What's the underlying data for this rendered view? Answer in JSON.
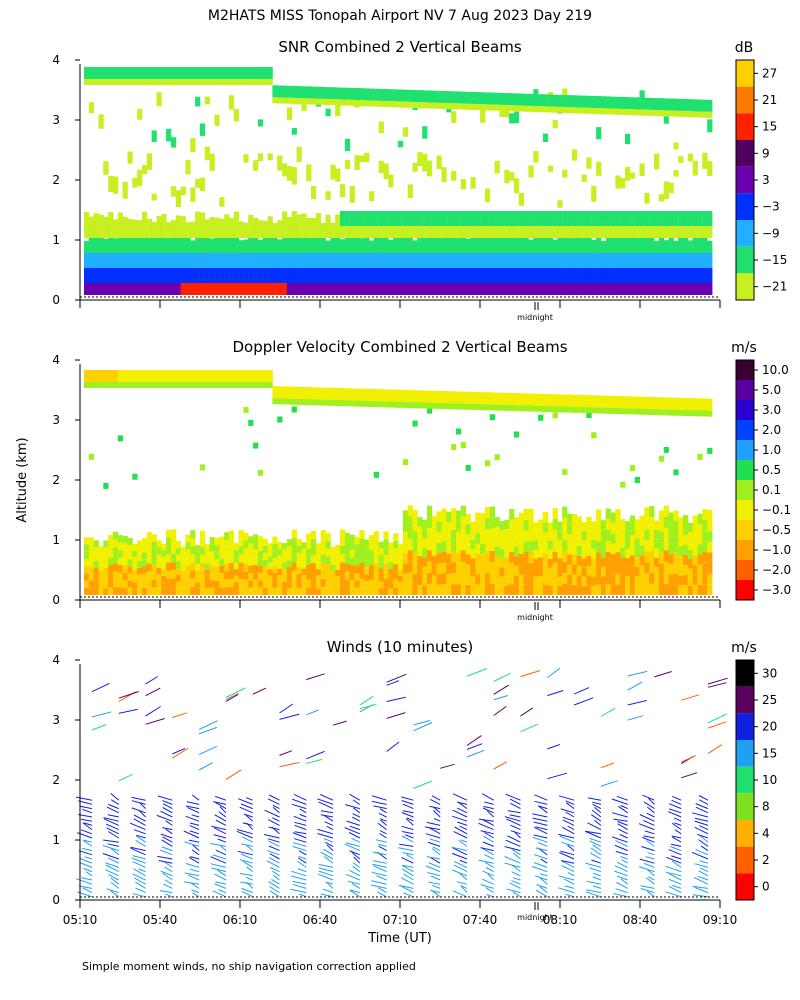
{
  "header": {
    "title": "M2HATS MISS Tonopah Airport NV   7 Aug 2023 Day 219"
  },
  "footer": {
    "note": "Simple moment winds, no ship navigation correction applied"
  },
  "axes": {
    "shared_ylabel": "Altitude (km)",
    "xlabel": "Time (UT)",
    "x_ticks": [
      "05:10",
      "05:40",
      "06:10",
      "06:40",
      "07:10",
      "07:40",
      "08:10",
      "08:40",
      "09:10"
    ],
    "y_ticks": [
      "0",
      "1",
      "2",
      "3",
      "4"
    ],
    "midnight_label": "midnight"
  },
  "chart_data": [
    {
      "type": "heatmap",
      "title": "SNR Combined 2 Vertical Beams",
      "colorbar_title": "dB",
      "colorbar_ticks": [
        "27",
        "21",
        "15",
        "9",
        "3",
        "−3",
        "−9",
        "−15",
        "−21"
      ],
      "colorbar_colors": [
        "#ffd000",
        "#ff7a00",
        "#ff2000",
        "#500060",
        "#6a00b0",
        "#0030ff",
        "#20b0ff",
        "#20e070",
        "#c8f020"
      ],
      "xlim": [
        "05:10",
        "09:10"
      ],
      "ylim": [
        0,
        4
      ],
      "xlabel": "",
      "ylabel": "Altitude (km)"
    },
    {
      "type": "heatmap",
      "title": "Doppler Velocity Combined 2 Vertical Beams",
      "colorbar_title": "m/s",
      "colorbar_ticks": [
        "10.0",
        "5.0",
        "3.0",
        "2.0",
        "1.0",
        "0.5",
        "0.1",
        "−0.1",
        "−0.5",
        "−1.0",
        "−2.0",
        "−3.0"
      ],
      "colorbar_colors": [
        "#3a0030",
        "#5a00a0",
        "#2a00d0",
        "#0040ff",
        "#20a0ff",
        "#20e050",
        "#a0f020",
        "#f0f000",
        "#ffd000",
        "#ffa000",
        "#ff6000",
        "#ff0000"
      ],
      "xlim": [
        "05:10",
        "09:10"
      ],
      "ylim": [
        0,
        4
      ],
      "xlabel": "",
      "ylabel": "Altitude (km)"
    },
    {
      "type": "scatter",
      "title": "Winds (10 minutes)",
      "colorbar_title": "m/s",
      "colorbar_ticks": [
        "30",
        "25",
        "20",
        "15",
        "10",
        "8",
        "4",
        "2",
        "0"
      ],
      "colorbar_colors": [
        "#000000",
        "#5a0060",
        "#1020e0",
        "#20a0f0",
        "#20e070",
        "#80e020",
        "#ffb000",
        "#ff6000",
        "#ff0000"
      ],
      "xlim": [
        "05:10",
        "09:10"
      ],
      "ylim": [
        0,
        4
      ],
      "xlabel": "Time (UT)",
      "ylabel": "Altitude (km)"
    }
  ]
}
